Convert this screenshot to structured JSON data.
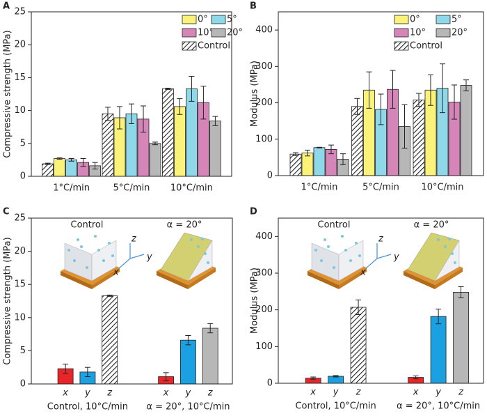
{
  "chart_data": [
    {
      "type": "grouped_bar",
      "panel": "A",
      "ylabel": "Compressive strength (MPa)",
      "categories": [
        "1°C/min",
        "5°C/min",
        "10°C/min"
      ],
      "series": [
        {
          "name": "Control",
          "color": "hatch",
          "values": [
            1.9,
            9.5,
            13.3
          ],
          "errors": [
            0.1,
            1.0,
            0.1
          ]
        },
        {
          "name": "0°",
          "color": "#fbf27a",
          "values": [
            2.7,
            8.9,
            10.6
          ],
          "errors": [
            0.1,
            1.7,
            1.2
          ]
        },
        {
          "name": "5°",
          "color": "#8ed8ea",
          "values": [
            2.5,
            9.5,
            13.3
          ],
          "errors": [
            0.2,
            1.5,
            1.9
          ]
        },
        {
          "name": "10°",
          "color": "#d685b8",
          "values": [
            2.1,
            8.7,
            11.2
          ],
          "errors": [
            0.6,
            2.0,
            2.5
          ]
        },
        {
          "name": "20°",
          "color": "#b7b7b7",
          "values": [
            1.6,
            5.0,
            8.4
          ],
          "errors": [
            0.5,
            0.2,
            0.7
          ]
        }
      ],
      "ylim": [
        0,
        25
      ],
      "yticks": [
        0,
        5,
        10,
        15,
        20,
        25
      ]
    },
    {
      "type": "grouped_bar",
      "panel": "B",
      "ylabel": "Modulus (MPa)",
      "categories": [
        "1°C/min",
        "5°C/min",
        "10°C/min"
      ],
      "series": [
        {
          "name": "Control",
          "color": "hatch",
          "values": [
            59,
            190,
            208
          ],
          "errors": [
            4,
            22,
            18
          ]
        },
        {
          "name": "0°",
          "color": "#fbf27a",
          "values": [
            62,
            235,
            235
          ],
          "errors": [
            8,
            50,
            42
          ]
        },
        {
          "name": "5°",
          "color": "#8ed8ea",
          "values": [
            77,
            182,
            240
          ],
          "errors": [
            1,
            42,
            67
          ]
        },
        {
          "name": "10°",
          "color": "#d685b8",
          "values": [
            72,
            237,
            202
          ],
          "errors": [
            12,
            52,
            47
          ]
        },
        {
          "name": "20°",
          "color": "#b7b7b7",
          "values": [
            45,
            135,
            248
          ],
          "errors": [
            15,
            60,
            15
          ]
        }
      ],
      "ylim": [
        0,
        450
      ],
      "yticks": [
        0,
        100,
        200,
        300,
        400
      ]
    },
    {
      "type": "bar",
      "panel": "C",
      "ylabel": "Compressive strength (MPa)",
      "categories": [
        "x",
        "y",
        "z",
        "x",
        "y",
        "z"
      ],
      "groups": [
        "Control, 10°C/min",
        "α = 20°, 10°C/min"
      ],
      "values": [
        2.3,
        1.8,
        13.3,
        1.1,
        6.6,
        8.4
      ],
      "errors": [
        0.7,
        0.7,
        0.1,
        0.6,
        0.7,
        0.7
      ],
      "colors": [
        "#e8262a",
        "#1ba1e2",
        "hatch",
        "#e8262a",
        "#1ba1e2",
        "#b7b7b7"
      ],
      "annotations": [
        "Control",
        "α = 20°"
      ],
      "inset_axes": [
        "z",
        "y",
        "x"
      ],
      "ylim": [
        0,
        25
      ],
      "yticks": [
        0,
        5,
        10,
        15,
        20,
        25
      ]
    },
    {
      "type": "bar",
      "panel": "D",
      "ylabel": "Modulus (MPa)",
      "categories": [
        "x",
        "y",
        "z",
        "x",
        "y",
        "z"
      ],
      "groups": [
        "Control, 10°C/min",
        "α = 20°, 10°C/min"
      ],
      "values": [
        14,
        19,
        207,
        16,
        182,
        248
      ],
      "errors": [
        3,
        2,
        20,
        4,
        20,
        15
      ],
      "colors": [
        "#e8262a",
        "#1ba1e2",
        "hatch",
        "#e8262a",
        "#1ba1e2",
        "#b7b7b7"
      ],
      "annotations": [
        "Control",
        "α = 20°"
      ],
      "inset_axes": [
        "z",
        "y",
        "x"
      ],
      "ylim": [
        0,
        450
      ],
      "yticks": [
        0,
        100,
        200,
        300,
        400
      ]
    }
  ]
}
